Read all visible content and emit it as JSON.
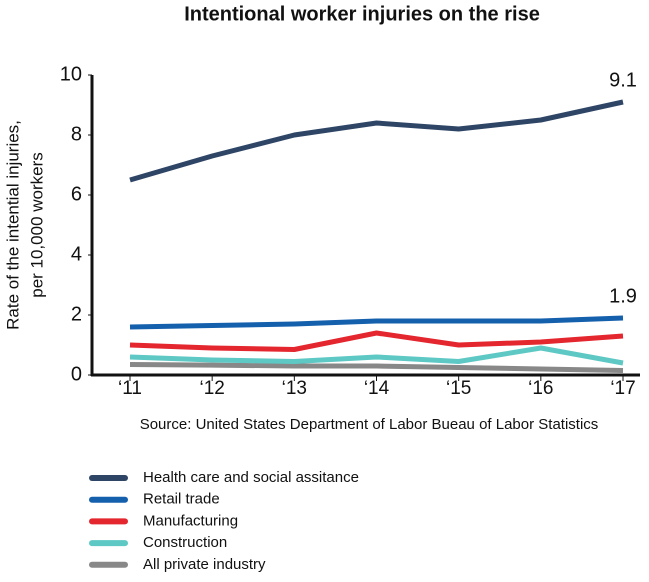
{
  "chart_data": {
    "type": "line",
    "title": "Intentional worker injuries on the rise",
    "ylabel": [
      "Rate of the intential injuries,",
      "per 10,000 workers"
    ],
    "source": "Source: United States Department of Labor Bueau of Labor Statistics",
    "categories": [
      "‘11",
      "‘12",
      "‘13",
      "‘14",
      "‘15",
      "‘16",
      "‘17"
    ],
    "ylim": [
      0,
      10
    ],
    "yticks": [
      0,
      2,
      4,
      6,
      8,
      10
    ],
    "grid": false,
    "legend": "bottom",
    "series": [
      {
        "name": "Health care and social assitance",
        "color": "#2e4566",
        "values": [
          6.5,
          7.3,
          8.0,
          8.4,
          8.2,
          8.5,
          9.1
        ]
      },
      {
        "name": "Retail trade",
        "color": "#1560ad",
        "values": [
          1.6,
          1.65,
          1.7,
          1.8,
          1.8,
          1.8,
          1.9
        ]
      },
      {
        "name": "Manufacturing",
        "color": "#e4262f",
        "values": [
          1.0,
          0.9,
          0.85,
          1.4,
          1.0,
          1.1,
          1.3
        ]
      },
      {
        "name": "Construction",
        "color": "#5ec8c4",
        "values": [
          0.6,
          0.5,
          0.45,
          0.6,
          0.45,
          0.9,
          0.4
        ]
      },
      {
        "name": "All private industry",
        "color": "#888888",
        "values": [
          0.35,
          0.33,
          0.3,
          0.3,
          0.25,
          0.2,
          0.15
        ]
      }
    ]
  }
}
